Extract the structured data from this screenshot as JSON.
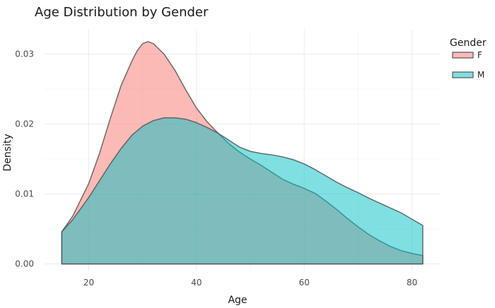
{
  "chart_data": {
    "type": "area",
    "title": "Age Distribution by Gender",
    "xlabel": "Age",
    "ylabel": "Density",
    "xlim": [
      15,
      82
    ],
    "ylim": [
      0,
      0.032
    ],
    "xticks": [
      20,
      40,
      60,
      80
    ],
    "yticks": [
      0.0,
      0.01,
      0.02,
      0.03
    ],
    "ytick_labels": [
      "0.00",
      "0.01",
      "0.02",
      "0.03"
    ],
    "grid": true,
    "legend": {
      "title": "Gender",
      "placement": "right"
    },
    "series": [
      {
        "name": "F",
        "color": "#F8766D",
        "x": [
          15,
          17,
          20,
          22,
          24,
          26,
          28,
          29,
          30,
          31,
          32,
          34,
          36,
          38,
          40,
          42,
          44,
          46,
          48,
          50,
          52,
          54,
          56,
          58,
          60,
          62,
          64,
          66,
          68,
          70,
          72,
          74,
          76,
          78,
          80,
          82
        ],
        "y": [
          0.0046,
          0.0068,
          0.0115,
          0.0158,
          0.0208,
          0.0255,
          0.029,
          0.0305,
          0.0315,
          0.0318,
          0.0315,
          0.03,
          0.0277,
          0.0249,
          0.0223,
          0.0203,
          0.0187,
          0.0172,
          0.016,
          0.015,
          0.0141,
          0.0131,
          0.0121,
          0.0114,
          0.0108,
          0.0101,
          0.009,
          0.0078,
          0.0065,
          0.0053,
          0.0042,
          0.0033,
          0.0025,
          0.0019,
          0.0015,
          0.0012
        ]
      },
      {
        "name": "M",
        "color": "#00BFC4",
        "x": [
          15,
          17,
          20,
          22,
          24,
          26,
          28,
          30,
          32,
          34,
          35,
          36,
          38,
          40,
          42,
          44,
          46,
          48,
          50,
          52,
          54,
          56,
          58,
          60,
          62,
          64,
          66,
          68,
          70,
          72,
          74,
          76,
          78,
          80,
          82
        ],
        "y": [
          0.0046,
          0.0063,
          0.0095,
          0.0119,
          0.0143,
          0.0165,
          0.0184,
          0.0197,
          0.0205,
          0.0209,
          0.0209,
          0.0209,
          0.0207,
          0.0202,
          0.0195,
          0.0187,
          0.0177,
          0.0167,
          0.0161,
          0.0158,
          0.0156,
          0.0153,
          0.0149,
          0.0143,
          0.0135,
          0.0126,
          0.0117,
          0.0109,
          0.0102,
          0.0094,
          0.0087,
          0.008,
          0.0073,
          0.0064,
          0.0055
        ]
      }
    ]
  }
}
